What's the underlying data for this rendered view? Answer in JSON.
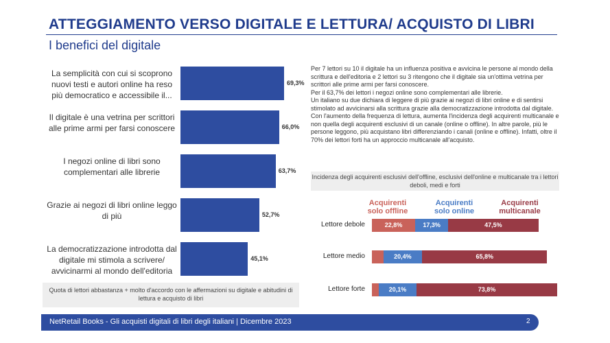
{
  "header": {
    "title": "ATTEGGIAMENTO VERSO DIGITALE E LETTURA/ ACQUISTO DI LIBRI",
    "subtitle": "I benefici del digitale"
  },
  "colors": {
    "title_blue": "#1f3b8c",
    "bar_blue": "#2e4da0",
    "offline": "#c9625a",
    "online": "#4a7cc5",
    "multichannel": "#983a45"
  },
  "chart_data": [
    {
      "type": "bar",
      "orientation": "horizontal",
      "categories": [
        "La semplicità con cui si scoprono nuovi testi e autori online ha reso più democratico e accessibile il...",
        "Il digitale è una vetrina per scrittori alle prime armi per farsi conoscere",
        "I negozi online di libri sono complementari alle librerie",
        "Grazie ai negozi di libri online leggo di più",
        "La democratizzazione introdotta dal digitale mi stimola a scrivere/ avvicinarmi al mondo dell'editoria"
      ],
      "values": [
        69.3,
        66.0,
        63.7,
        52.7,
        45.1
      ],
      "value_labels": [
        "69,3%",
        "66,0%",
        "63,7%",
        "52,7%",
        "45,1%"
      ],
      "xlim": [
        0,
        100
      ],
      "note": "Quota di lettori abbastanza + molto d'accordo con le affermazioni su digitale e abitudini di lettura e acquisto di libri"
    },
    {
      "type": "bar",
      "orientation": "horizontal",
      "stacked": true,
      "title": "Incidenza degli acquirenti esclusivi dell'offline, esclusivi dell'online e multicanale tra i lettori deboli, medi e forti",
      "categories": [
        "Lettore debole",
        "Lettore medio",
        "Lettore forte"
      ],
      "series": [
        {
          "name": "Acquirenti solo offline",
          "values": [
            22.8,
            6.0,
            3.5
          ],
          "labels": [
            "22,8%",
            "",
            ""
          ]
        },
        {
          "name": "Acquirenti solo online",
          "values": [
            17.3,
            20.4,
            20.1
          ],
          "labels": [
            "17,3%",
            "20,4%",
            "20,1%"
          ]
        },
        {
          "name": "Acquirenti multicanale",
          "values": [
            47.5,
            65.8,
            73.8
          ],
          "labels": [
            "47,5%",
            "65,8%",
            "73,8%"
          ]
        }
      ],
      "legend": "top"
    }
  ],
  "right_text": [
    "Per 7 lettori su 10 il digitale ha un influenza positiva e avvicina le persone al mondo della scrittura e dell'editoria e 2 lettori su 3 ritengono che il digitale sia un'ottima vetrina per scrittori alle prime armi per farsi conoscere.",
    "Per il 63,7% dei lettori i negozi online sono complementari alle librerie.",
    "Un italiano su due dichiara di leggere di più grazie ai negozi di libri online e di sentirsi stimolato ad avvicinarsi alla scrittura grazie alla democratizzazione introdotta dal digitale.",
    "Con l'aumento della frequenza di lettura, aumenta l'incidenza degli acquirenti multicanale e non quella degli acquirenti esclusivi di un canale (online o offline). In altre parole, più le persone leggono, più acquistano libri differenziando i canali (online e offline). Infatti, oltre il 70% dei lettori forti ha un approccio multicanale all'acquisto."
  ],
  "footer": {
    "text": "NetRetail Books - Gli acquisti digitali di libri degli italiani   |   Dicembre 2023",
    "page": "2"
  }
}
